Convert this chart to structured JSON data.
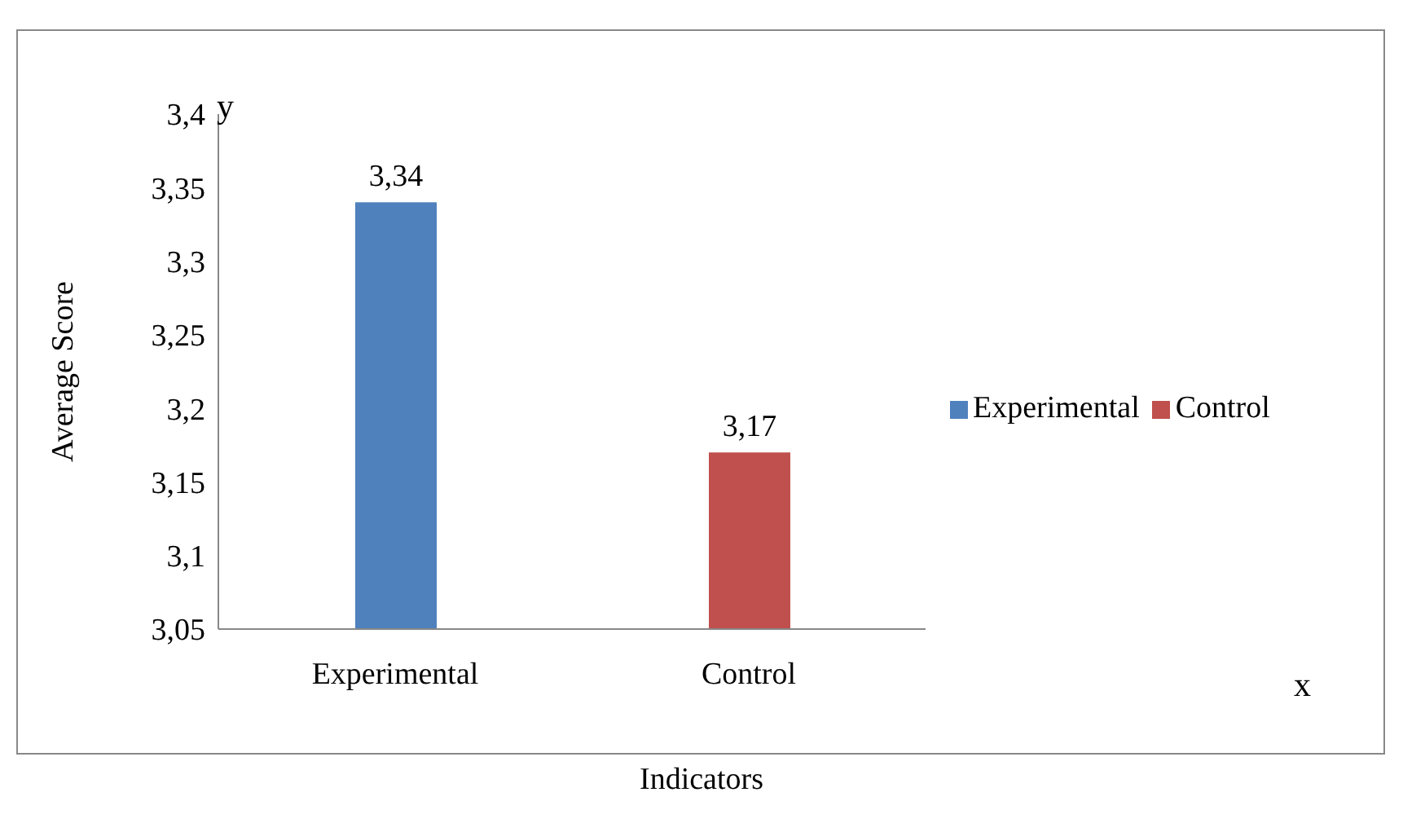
{
  "chart_data": {
    "type": "bar",
    "xlabel": "Indicators",
    "ylabel": "Average Score",
    "categories": [
      "Experimental",
      "Control"
    ],
    "series": [
      {
        "name": "Experimental",
        "color": "#4f81bd",
        "values": [
          3.34,
          null
        ],
        "value_labels": [
          "3,34",
          null
        ]
      },
      {
        "name": "Control",
        "color": "#c0504d",
        "values": [
          null,
          3.17
        ],
        "value_labels": [
          null,
          "3,17"
        ]
      }
    ],
    "ylim": [
      3.05,
      3.4
    ],
    "yticks": [
      {
        "value": 3.05,
        "label": "3,05"
      },
      {
        "value": 3.1,
        "label": "3,1"
      },
      {
        "value": 3.15,
        "label": "3,15"
      },
      {
        "value": 3.2,
        "label": "3,2"
      },
      {
        "value": 3.25,
        "label": "3,25"
      },
      {
        "value": 3.3,
        "label": "3,3"
      },
      {
        "value": 3.35,
        "label": "3,35"
      },
      {
        "value": 3.4,
        "label": "3,4"
      }
    ],
    "grid": false,
    "legend": "right",
    "annotations": [
      "y",
      "x"
    ]
  }
}
